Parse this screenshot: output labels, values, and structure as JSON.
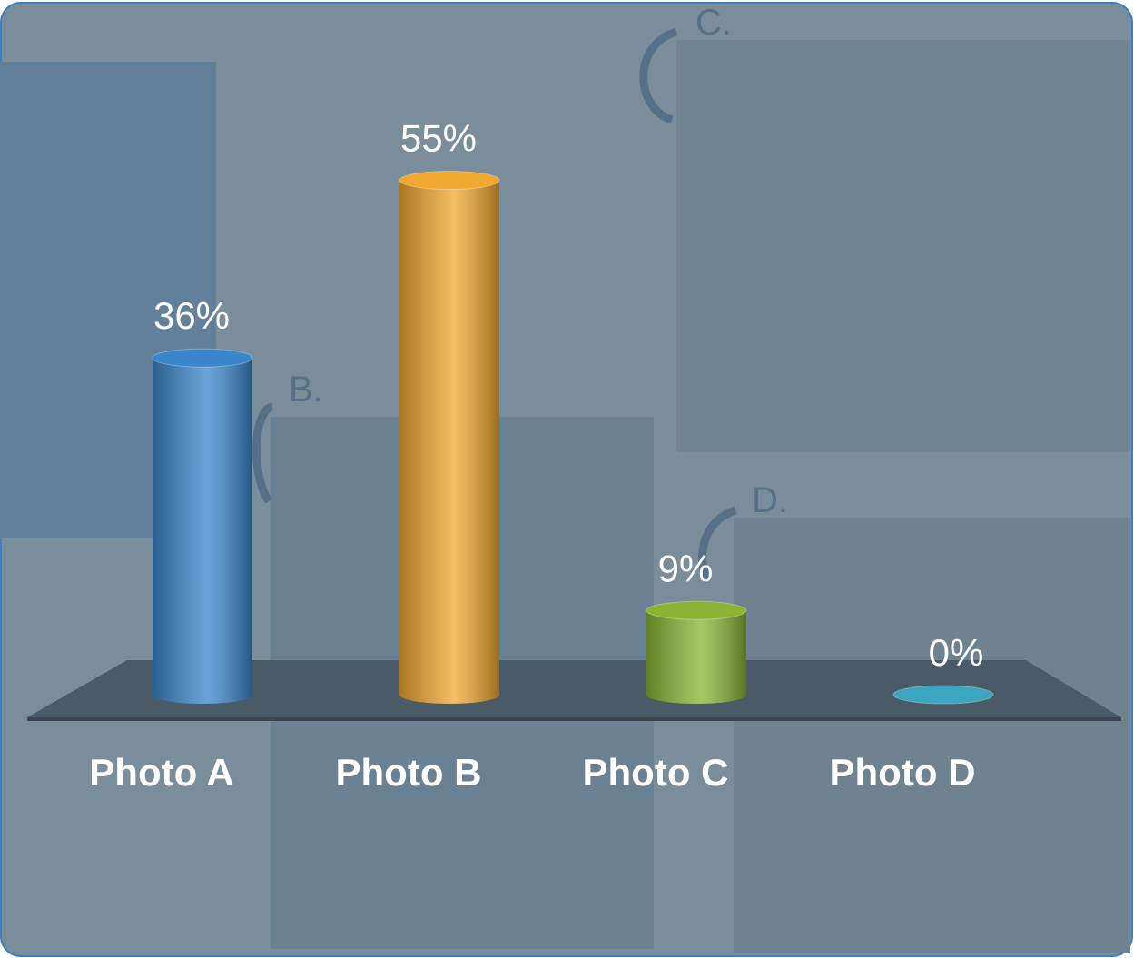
{
  "chart_data": {
    "type": "bar3d",
    "categories": [
      "Photo A",
      "Photo B",
      "Photo C",
      "Photo D"
    ],
    "values": [
      36,
      55,
      9,
      0
    ],
    "value_labels": [
      "36%",
      "55%",
      "9%",
      "0%"
    ],
    "colors": [
      "#3a86cc",
      "#f0a830",
      "#8ab534",
      "#3aa6c0"
    ],
    "annotations": [
      "B.",
      "C.",
      "D."
    ]
  }
}
